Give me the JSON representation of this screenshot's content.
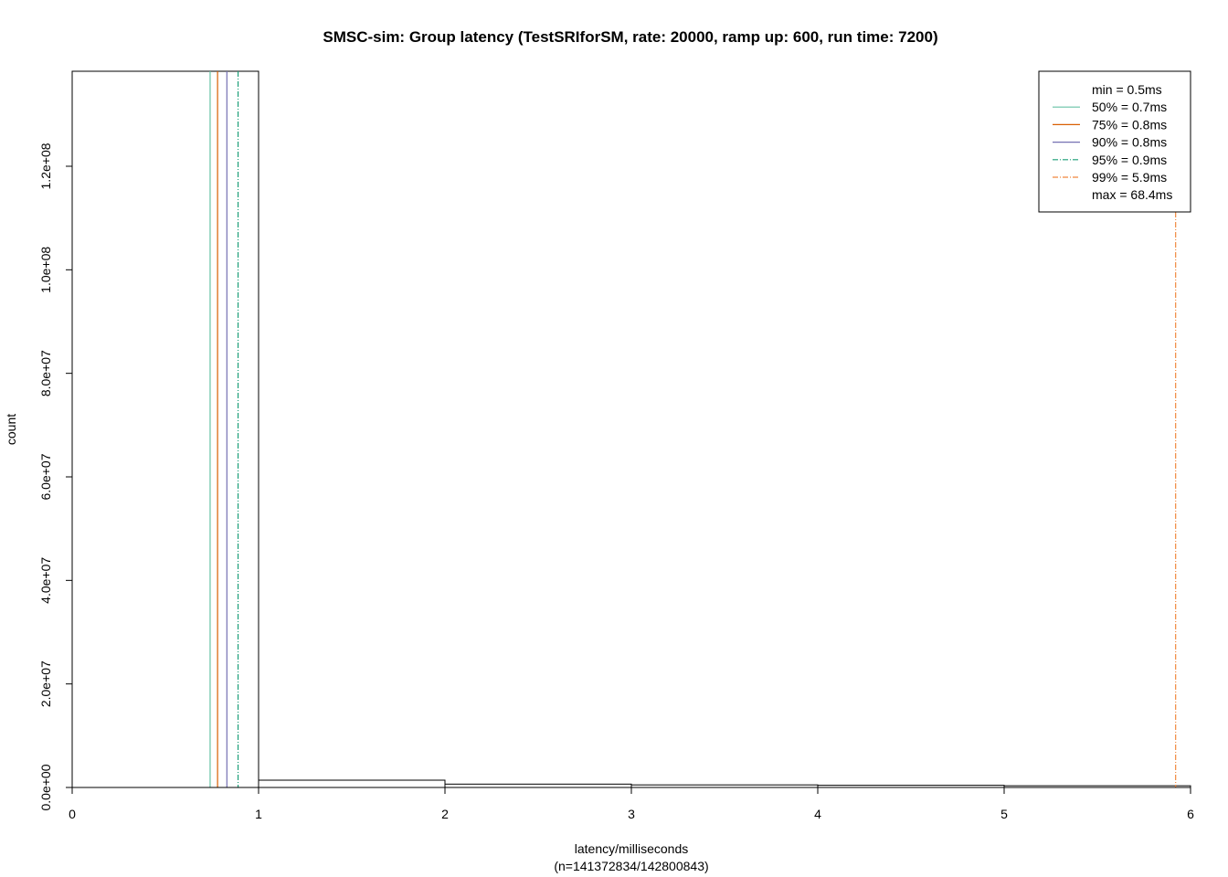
{
  "chart_data": {
    "type": "bar",
    "title": "SMSC-sim: Group latency (TestSRIforSM, rate: 20000, ramp up: 600, run time: 7200)",
    "xlabel": "latency/milliseconds",
    "xlabel_sub": "(n=141372834/142800843)",
    "ylabel": "count",
    "xlim": [
      0,
      6
    ],
    "ylim": [
      0,
      138350000
    ],
    "xticks": [
      0,
      1,
      2,
      3,
      4,
      5,
      6
    ],
    "yticks": [
      0,
      20000000,
      40000000,
      60000000,
      80000000,
      100000000,
      120000000
    ],
    "ytick_labels": [
      "0.0e+00",
      "2.0e+07",
      "4.0e+07",
      "6.0e+07",
      "8.0e+07",
      "1.0e+08",
      "1.2e+08"
    ],
    "grid": false,
    "bins": [
      {
        "from": 0,
        "to": 1,
        "count": 138350000
      },
      {
        "from": 1,
        "to": 2,
        "count": 1410000
      },
      {
        "from": 2,
        "to": 3,
        "count": 650000
      },
      {
        "from": 3,
        "to": 4,
        "count": 500000
      },
      {
        "from": 4,
        "to": 5,
        "count": 420000
      },
      {
        "from": 5,
        "to": 6,
        "count": 330000
      }
    ],
    "percentile_lines": [
      {
        "label": "50% = 0.7ms",
        "x": 0.74,
        "color": "#66c2a5",
        "dash": "solid"
      },
      {
        "label": "75% = 0.8ms",
        "x": 0.78,
        "color": "#d95f02",
        "dash": "solid"
      },
      {
        "label": "90% = 0.8ms",
        "x": 0.83,
        "color": "#7570b3",
        "dash": "solid"
      },
      {
        "label": "95% = 0.9ms",
        "x": 0.89,
        "color": "#1b9e77",
        "dash": "dotdash"
      },
      {
        "label": "99% = 5.9ms",
        "x": 5.92,
        "color": "#f0883e",
        "dash": "dotdash"
      }
    ],
    "legend": {
      "position": "top-right",
      "min_label": "min = 0.5ms",
      "max_label": "max = 68.4ms"
    }
  }
}
